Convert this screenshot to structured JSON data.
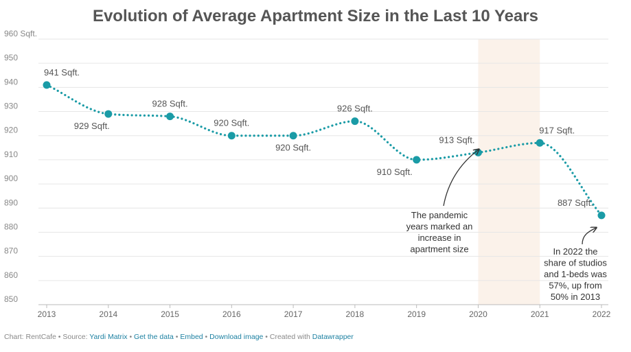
{
  "title": "Evolution of Average Apartment Size in the Last 10 Years",
  "colors": {
    "series": "#1a9ba6",
    "highlight_band": "#fbf2ea",
    "grid": "#e6e6e6",
    "axis_text": "#888888",
    "label_text": "#555555",
    "title_text": "#555555",
    "link": "#1d81a2"
  },
  "chart_data": {
    "type": "line",
    "title": "Evolution of Average Apartment Size in the Last 10 Years",
    "xlabel": "",
    "ylabel": "",
    "x": [
      "2013",
      "2014",
      "2015",
      "2016",
      "2017",
      "2018",
      "2019",
      "2020",
      "2021",
      "2022"
    ],
    "series": [
      {
        "values": [
          941,
          929,
          928,
          920,
          920,
          926,
          910,
          913,
          917,
          887
        ],
        "point_labels": [
          "941 Sqft.",
          "929 Sqft.",
          "928 Sqft.",
          "920 Sqft.",
          "920 Sqft.",
          "926 Sqft.",
          "910 Sqft.",
          "913 Sqft.",
          "917 Sqft.",
          "887 Sqft."
        ]
      }
    ],
    "ylim": [
      850,
      960
    ],
    "yticks": [
      850,
      860,
      870,
      880,
      890,
      900,
      910,
      920,
      930,
      940,
      950,
      960
    ],
    "ytick_labels": [
      "850",
      "860",
      "870",
      "880",
      "890",
      "900",
      "910",
      "920",
      "930",
      "940",
      "950",
      "960 Sqft."
    ],
    "grid": true,
    "line_style": "dotted",
    "highlight_range": [
      "2020",
      "2021"
    ],
    "annotations": [
      {
        "lines": [
          "The pandemic",
          "years marked an",
          "increase in",
          "apartment size"
        ],
        "target": "2020"
      },
      {
        "lines": [
          "In 2022 the",
          "share of studios",
          "and 1-beds was",
          "57%, up from",
          "50% in 2013"
        ],
        "target": "2022"
      }
    ]
  },
  "footer": {
    "prefix": "Chart: RentCafe • Source: ",
    "source": "Yardi Matrix",
    "sep": " • ",
    "get_data": "Get the data",
    "embed": "Embed",
    "download": "Download image",
    "created_prefix": " • Created with ",
    "tool": "Datawrapper"
  }
}
